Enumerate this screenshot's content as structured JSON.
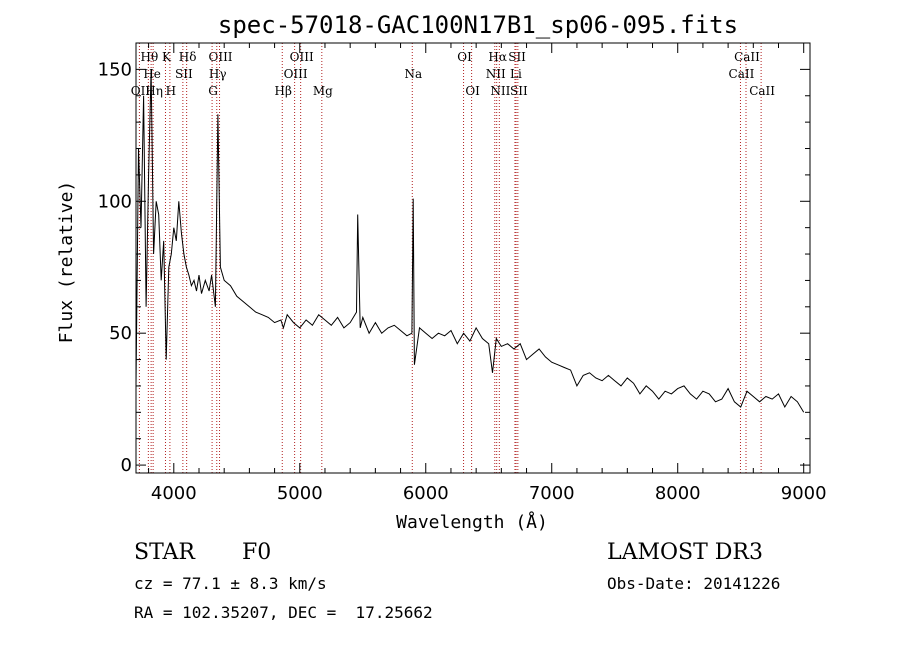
{
  "chart_data": {
    "type": "line",
    "title": "spec-57018-GAC100N17B1_sp06-095.fits",
    "xlabel": "Wavelength (Å)",
    "ylabel": "Flux (relative)",
    "xlim": [
      3700,
      9050
    ],
    "ylim": [
      -3,
      160
    ],
    "x_ticks": [
      4000,
      5000,
      6000,
      7000,
      8000,
      9000
    ],
    "x_tick_labels": [
      "4000",
      "5000",
      "6000",
      "7000",
      "8000",
      "9000"
    ],
    "y_ticks": [
      0,
      50,
      100,
      150
    ],
    "y_tick_labels": [
      "0",
      "50",
      "100",
      "150"
    ],
    "series": [
      {
        "name": "flux",
        "x": [
          3700,
          3720,
          3740,
          3760,
          3780,
          3800,
          3820,
          3840,
          3860,
          3880,
          3900,
          3920,
          3940,
          3960,
          3980,
          4000,
          4020,
          4040,
          4060,
          4080,
          4100,
          4120,
          4140,
          4160,
          4180,
          4200,
          4220,
          4250,
          4280,
          4300,
          4330,
          4350,
          4370,
          4400,
          4450,
          4500,
          4550,
          4600,
          4650,
          4700,
          4750,
          4800,
          4850,
          4870,
          4900,
          4950,
          5000,
          5050,
          5100,
          5150,
          5200,
          5250,
          5300,
          5350,
          5400,
          5450,
          5460,
          5480,
          5500,
          5550,
          5600,
          5650,
          5700,
          5750,
          5800,
          5850,
          5890,
          5900,
          5910,
          5950,
          6000,
          6050,
          6100,
          6150,
          6200,
          6250,
          6300,
          6350,
          6400,
          6450,
          6500,
          6530,
          6560,
          6600,
          6650,
          6700,
          6750,
          6800,
          6850,
          6900,
          6950,
          7000,
          7050,
          7100,
          7150,
          7200,
          7250,
          7300,
          7350,
          7400,
          7450,
          7500,
          7550,
          7600,
          7650,
          7700,
          7750,
          7800,
          7850,
          7900,
          7950,
          8000,
          8050,
          8100,
          8150,
          8200,
          8250,
          8300,
          8350,
          8400,
          8450,
          8500,
          8550,
          8600,
          8650,
          8700,
          8750,
          8800,
          8850,
          8900,
          8950,
          9000
        ],
        "values": [
          30,
          120,
          90,
          140,
          60,
          110,
          150,
          80,
          100,
          95,
          70,
          85,
          40,
          75,
          80,
          90,
          85,
          100,
          88,
          80,
          75,
          72,
          68,
          70,
          66,
          72,
          65,
          70,
          66,
          72,
          60,
          133,
          75,
          70,
          68,
          64,
          62,
          60,
          58,
          57,
          56,
          54,
          55,
          52,
          57,
          54,
          52,
          55,
          53,
          57,
          55,
          53,
          56,
          52,
          54,
          58,
          95,
          52,
          56,
          50,
          54,
          50,
          52,
          53,
          51,
          49,
          50,
          101,
          38,
          52,
          50,
          48,
          50,
          49,
          51,
          46,
          50,
          47,
          52,
          48,
          46,
          35,
          48,
          45,
          46,
          44,
          46,
          40,
          42,
          44,
          41,
          39,
          38,
          37,
          36,
          30,
          34,
          35,
          33,
          32,
          34,
          32,
          30,
          33,
          31,
          27,
          30,
          28,
          25,
          28,
          27,
          29,
          30,
          27,
          25,
          28,
          27,
          24,
          25,
          29,
          24,
          22,
          28,
          26,
          24,
          26,
          25,
          27,
          22,
          26,
          24,
          20
        ]
      }
    ],
    "lines": [
      {
        "label": "Hθ",
        "x": 3798,
        "row": 0
      },
      {
        "label": "OII",
        "x": 3727,
        "row": 2
      },
      {
        "label": "He",
        "x": 3820,
        "row": 1
      },
      {
        "label": "Hη",
        "x": 3836,
        "row": 2
      },
      {
        "label": "K",
        "x": 3934,
        "row": 0
      },
      {
        "label": "H",
        "x": 3969,
        "row": 2
      },
      {
        "label": "SII",
        "x": 4072,
        "row": 1
      },
      {
        "label": "Hδ",
        "x": 4102,
        "row": 0
      },
      {
        "label": "OIII",
        "x": 4363,
        "row": 0
      },
      {
        "label": "Hγ",
        "x": 4341,
        "row": 1
      },
      {
        "label": "G",
        "x": 4304,
        "row": 2
      },
      {
        "label": "Hβ",
        "x": 4861,
        "row": 2
      },
      {
        "label": "OIII",
        "x": 5007,
        "row": 0
      },
      {
        "label": "OIII",
        "x": 4959,
        "row": 1
      },
      {
        "label": "Mg",
        "x": 5175,
        "row": 2
      },
      {
        "label": "Na",
        "x": 5893,
        "row": 1
      },
      {
        "label": "OI",
        "x": 6300,
        "row": 0
      },
      {
        "label": "OI",
        "x": 6364,
        "row": 2
      },
      {
        "label": "Hα",
        "x": 6563,
        "row": 0
      },
      {
        "label": "SII",
        "x": 6717,
        "row": 0
      },
      {
        "label": "NII",
        "x": 6548,
        "row": 1
      },
      {
        "label": "Li",
        "x": 6708,
        "row": 1
      },
      {
        "label": "NII",
        "x": 6584,
        "row": 2
      },
      {
        "label": "SII",
        "x": 6731,
        "row": 2
      },
      {
        "label": "CaII",
        "x": 8542,
        "row": 0
      },
      {
        "label": "CaII",
        "x": 8498,
        "row": 1
      },
      {
        "label": "CaII",
        "x": 8662,
        "row": 2
      }
    ]
  },
  "info": {
    "class": "STAR",
    "subclass": "F0",
    "survey": "LAMOST DR3",
    "cz": "cz = 77.1 ± 8.3 km/s",
    "obs_date": "Obs-Date: 20141226",
    "coords": "RA = 102.35207, DEC =  17.25662"
  }
}
